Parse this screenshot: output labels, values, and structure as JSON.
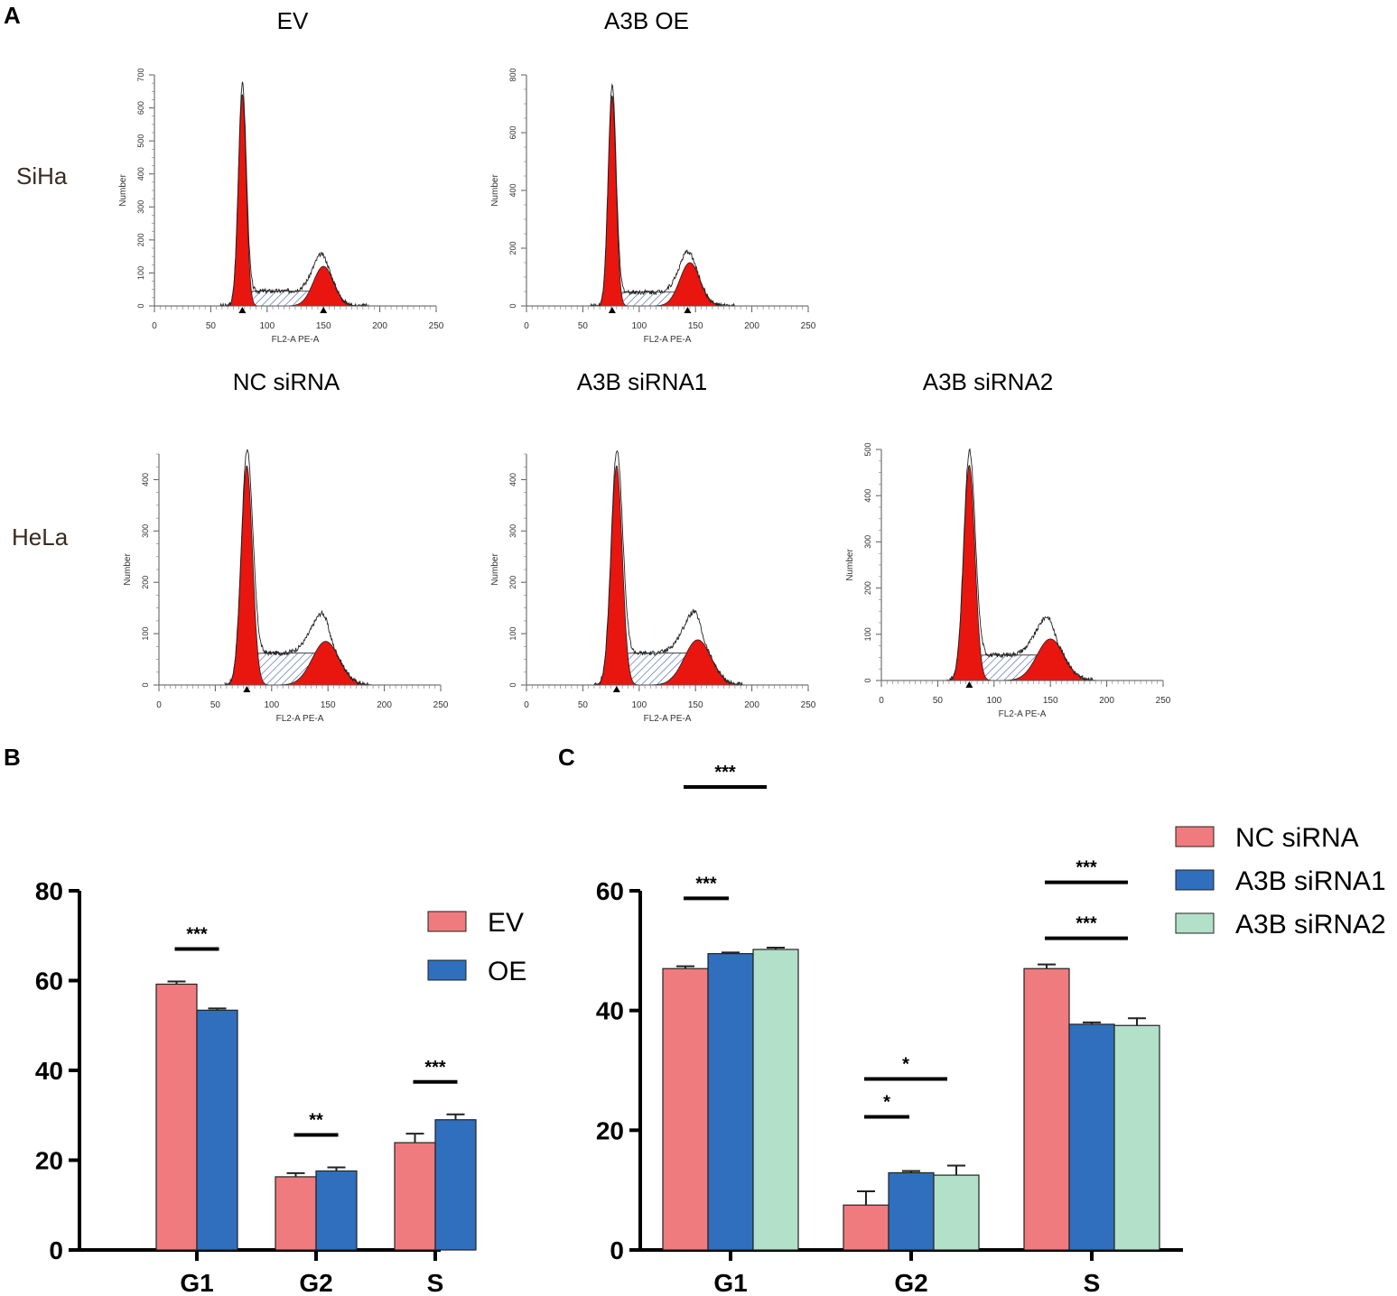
{
  "panels": {
    "a": "A",
    "b": "B",
    "c": "C"
  },
  "row_labels": {
    "siha": "SiHa",
    "hela": "HeLa"
  },
  "histograms": {
    "xlabel": "FL2-A PE-A",
    "ylabel": "Number",
    "xticks": [
      0,
      50,
      100,
      150,
      200,
      250
    ],
    "plots": [
      {
        "id": "siha-ev",
        "title": "EV",
        "yticks": [
          0,
          100,
          200,
          300,
          400,
          500,
          600,
          700
        ],
        "ymax": 700,
        "g1_center": 78,
        "g1_peak": 660,
        "g1_width": 3.5,
        "g2_center": 150,
        "g2_peak": 120,
        "g2_width": 9,
        "s_level": 45,
        "markers": [
          78,
          150
        ]
      },
      {
        "id": "siha-oe",
        "title": "A3B OE",
        "yticks": [
          0,
          200,
          400,
          600,
          800
        ],
        "ymax": 800,
        "g1_center": 76,
        "g1_peak": 750,
        "g1_width": 3.5,
        "g2_center": 145,
        "g2_peak": 150,
        "g2_width": 9,
        "s_level": 48,
        "markers": [
          76,
          143
        ]
      },
      {
        "id": "hela-nc",
        "title": "NC siRNA",
        "yticks": [
          0,
          100,
          200,
          300,
          400
        ],
        "ymax": 450,
        "g1_center": 78,
        "g1_peak": 440,
        "g1_width": 5,
        "g2_center": 148,
        "g2_peak": 85,
        "g2_width": 12,
        "s_level": 62,
        "markers": [
          78
        ]
      },
      {
        "id": "hela-si1",
        "title": "A3B siRNA1",
        "yticks": [
          0,
          100,
          200,
          300,
          400
        ],
        "ymax": 450,
        "g1_center": 80,
        "g1_peak": 440,
        "g1_width": 5,
        "g2_center": 152,
        "g2_peak": 88,
        "g2_width": 12,
        "s_level": 62,
        "markers": [
          80
        ]
      },
      {
        "id": "hela-si2",
        "title": "A3B siRNA2",
        "yticks": [
          0,
          100,
          200,
          300,
          400,
          500
        ],
        "ymax": 500,
        "g1_center": 78,
        "g1_peak": 480,
        "g1_width": 5,
        "g2_center": 150,
        "g2_peak": 90,
        "g2_width": 12,
        "s_level": 55,
        "markers": [
          78
        ]
      }
    ]
  },
  "chart_data": [
    {
      "type": "bar",
      "panel": "B",
      "categories": [
        "G1",
        "G2",
        "S"
      ],
      "series": [
        {
          "name": "EV",
          "color": "#ef7b7e",
          "values": [
            59.2,
            16.3,
            23.9
          ],
          "errors": [
            0.6,
            0.8,
            2.0
          ]
        },
        {
          "name": "OE",
          "color": "#2f6fbd",
          "values": [
            53.4,
            17.6,
            29.0
          ],
          "errors": [
            0.4,
            0.8,
            1.2
          ]
        }
      ],
      "yticks": [
        0,
        20,
        40,
        60,
        80
      ],
      "ylim": [
        0,
        80
      ],
      "significance": [
        {
          "category": "G1",
          "label": "***"
        },
        {
          "category": "G2",
          "label": "**"
        },
        {
          "category": "S",
          "label": "***"
        }
      ],
      "legend": "top-right",
      "title": "",
      "xlabel": "",
      "ylabel": ""
    },
    {
      "type": "bar",
      "panel": "C",
      "categories": [
        "G1",
        "G2",
        "S"
      ],
      "series": [
        {
          "name": "NC siRNA",
          "color": "#ef7b7e",
          "values": [
            47.0,
            7.5,
            47.0
          ],
          "errors": [
            0.4,
            2.3,
            0.7
          ]
        },
        {
          "name": "A3B siRNA1",
          "color": "#2f6fbd",
          "values": [
            49.5,
            12.9,
            37.7
          ],
          "errors": [
            0.2,
            0.3,
            0.3
          ]
        },
        {
          "name": "A3B siRNA2",
          "color": "#b2e0c9",
          "values": [
            50.2,
            12.5,
            37.5
          ],
          "errors": [
            0.3,
            1.6,
            1.2
          ]
        }
      ],
      "yticks": [
        0,
        20,
        40,
        60
      ],
      "ylim": [
        0,
        60
      ],
      "significance": [
        {
          "category": "G1",
          "label": "***",
          "span": "short"
        },
        {
          "category": "G1",
          "label": "***",
          "span": "long"
        },
        {
          "category": "G2",
          "label": "*",
          "span": "short"
        },
        {
          "category": "G2",
          "label": "*",
          "span": "long"
        },
        {
          "category": "S",
          "label": "***",
          "span": "long-lower"
        },
        {
          "category": "S",
          "label": "***",
          "span": "long-upper"
        }
      ],
      "legend": "top-right",
      "title": "",
      "xlabel": "",
      "ylabel": ""
    }
  ]
}
